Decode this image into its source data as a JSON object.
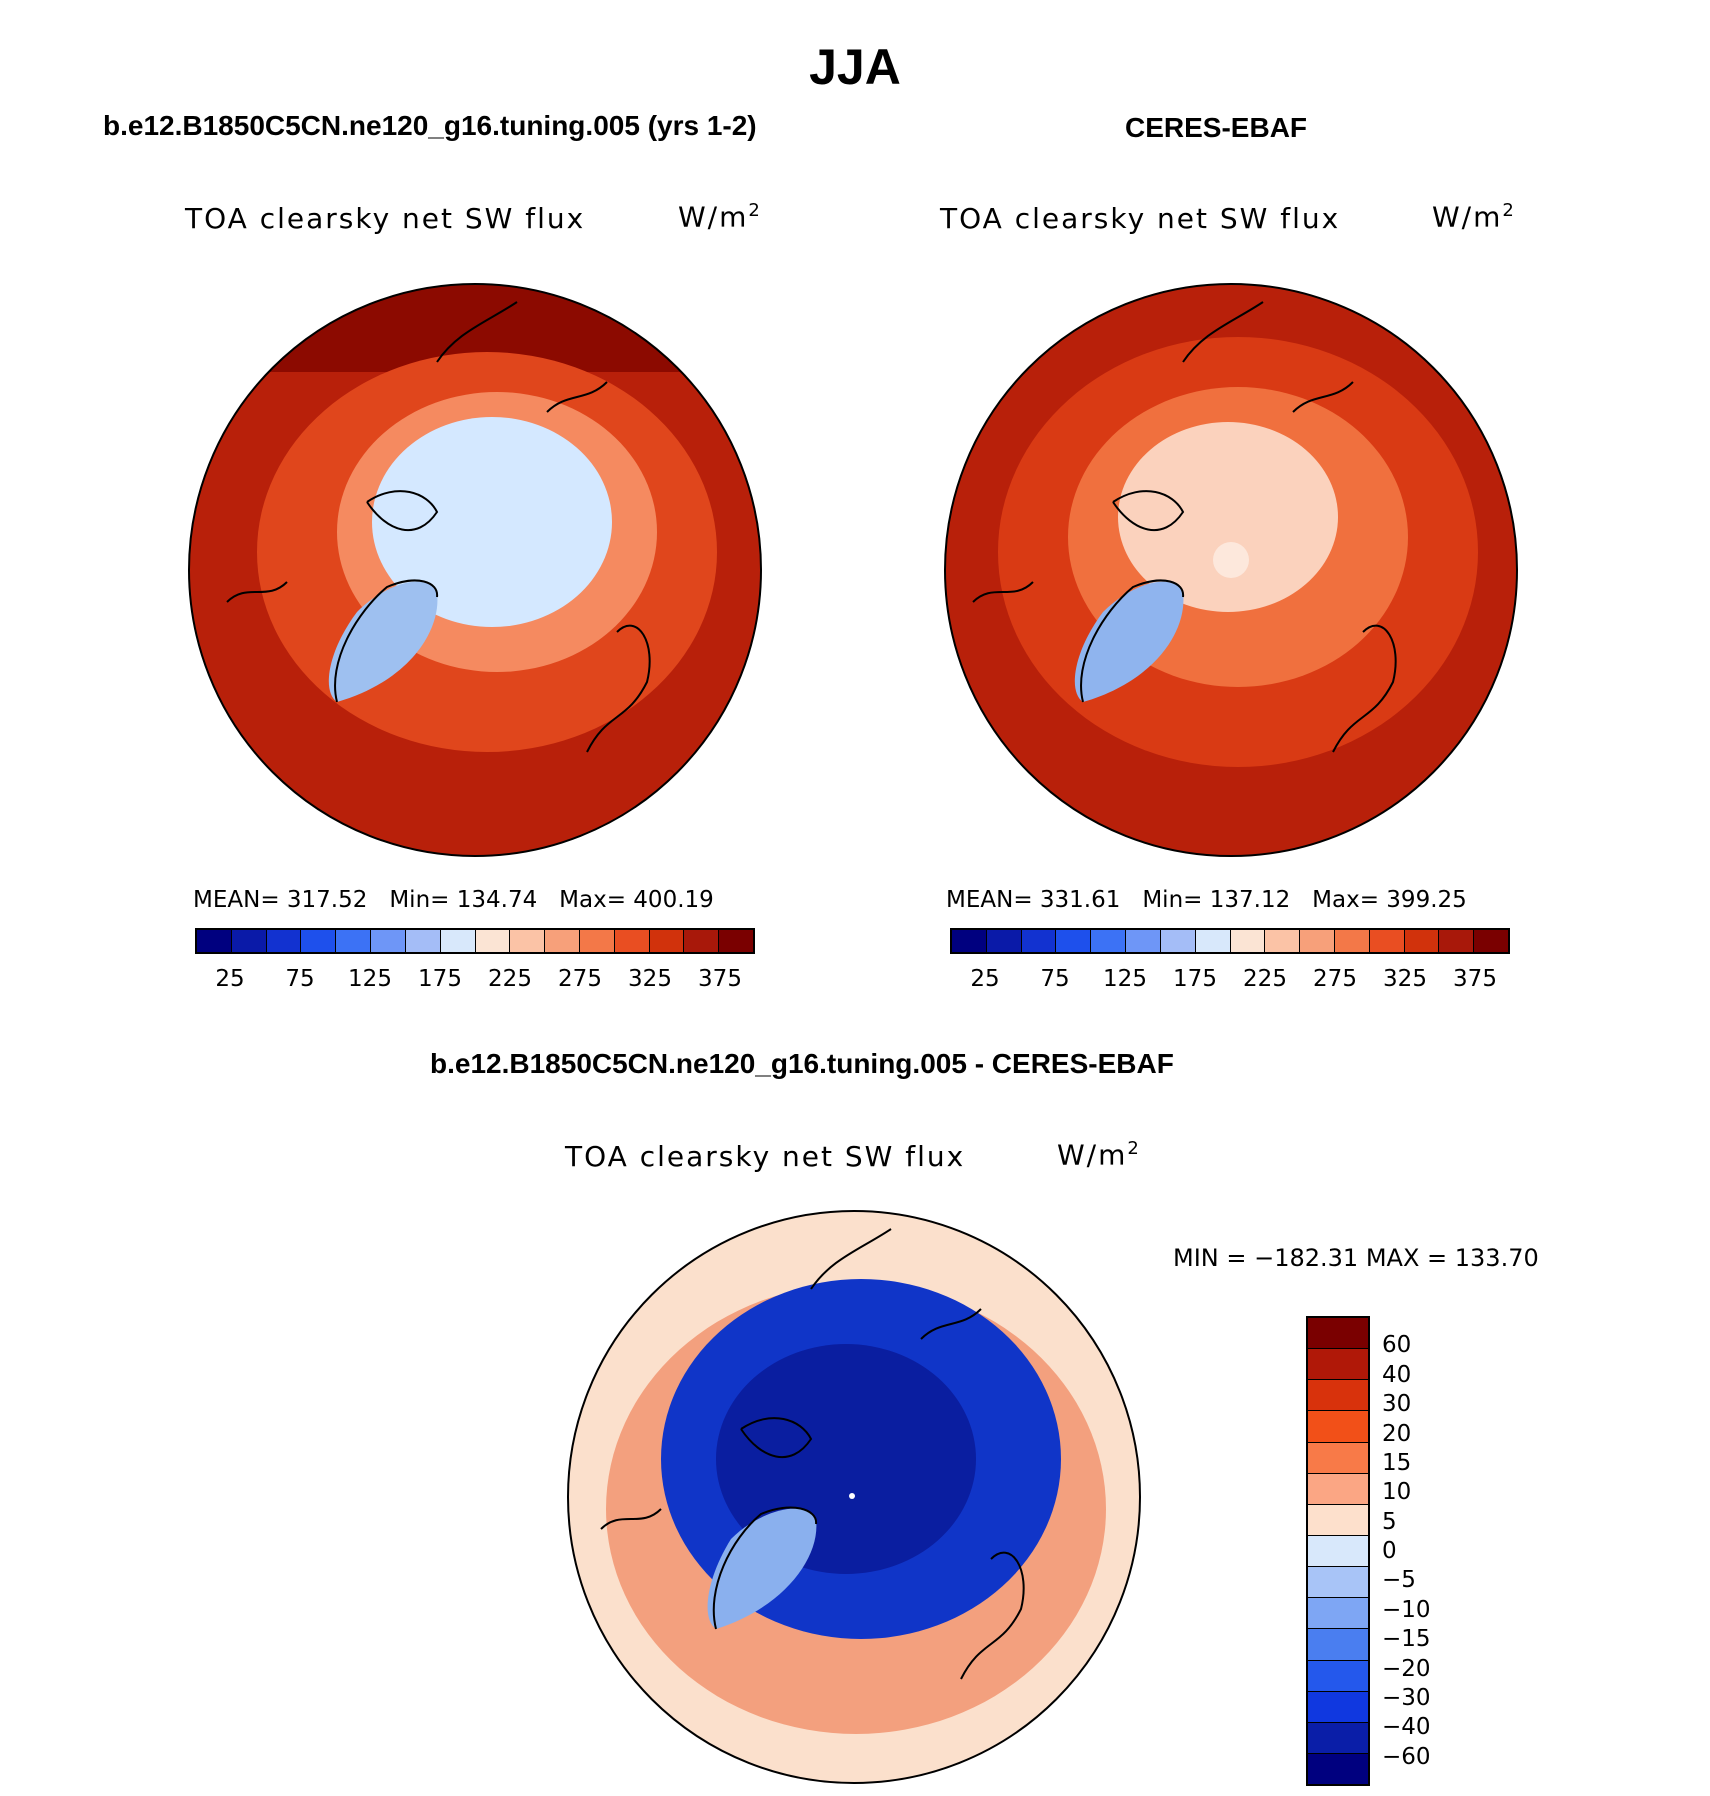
{
  "season": "JJA",
  "panels": [
    {
      "case_title": "b.e12.B1850C5CN.ne120_g16.tuning.005 (yrs 1-2)",
      "variable": "TOA clearsky net SW flux",
      "units": "W/m",
      "units_exp": "2",
      "stats": {
        "mean_label": "MEAN=",
        "mean": "317.52",
        "min_label": "Min=",
        "min": "134.74",
        "max_label": "Max=",
        "max": "400.19"
      },
      "map_colors": {
        "outer": "#b8200a",
        "mid": "#e0461c",
        "inner": "#f58a60",
        "polar": "#d4e8ff",
        "greenland": "#9ec0f0",
        "pole": "#cfe2fb"
      }
    },
    {
      "case_title": "CERES-EBAF",
      "variable": "TOA clearsky net SW flux",
      "units": "W/m",
      "units_exp": "2",
      "stats": {
        "mean_label": "MEAN=",
        "mean": "331.61",
        "min_label": "Min=",
        "min": "137.12",
        "max_label": "Max=",
        "max": "399.25"
      },
      "map_colors": {
        "outer": "#b8200a",
        "mid": "#d93a14",
        "inner": "#f0703e",
        "polar": "#fbd2bd",
        "greenland": "#8fb4ee",
        "pole": "#fde8dc"
      }
    }
  ],
  "abs_colorbar": {
    "colors": [
      "#00007f",
      "#0a1aa8",
      "#1232d0",
      "#1e50ec",
      "#3c72f5",
      "#6e96f7",
      "#a4bdf7",
      "#d8e8fb",
      "#fbe4d4",
      "#fbc3a6",
      "#f7a07a",
      "#f37848",
      "#e94e22",
      "#d1320c",
      "#a8180a",
      "#7a0000"
    ],
    "labels": [
      "25",
      "75",
      "125",
      "175",
      "225",
      "275",
      "325",
      "375"
    ]
  },
  "diff_panel": {
    "title": "b.e12.B1850C5CN.ne120_g16.tuning.005 - CERES-EBAF",
    "variable": "TOA clearsky net SW flux",
    "units": "W/m",
    "units_exp": "2",
    "minmax": "MIN = −182.31 MAX = 133.70",
    "map_colors": {
      "outer": "#fbe0cc",
      "ring": "#f3a07e",
      "blue": "#1035c8",
      "deep": "#0a1ea0",
      "greenland": "#8ab0ee",
      "pole": "#ffffff"
    }
  },
  "diff_colorbar": {
    "colors": [
      "#7a0000",
      "#b01808",
      "#d8320c",
      "#f25018",
      "#f87a48",
      "#fba684",
      "#fde0cc",
      "#d8e8fb",
      "#a8c4f7",
      "#7ea6f4",
      "#4a7ef0",
      "#2458ec",
      "#1038e0",
      "#0a1ea8",
      "#00007f"
    ],
    "labels": [
      "60",
      "40",
      "30",
      "20",
      "15",
      "10",
      "5",
      "0",
      "−5",
      "−10",
      "−15",
      "−20",
      "−30",
      "−40",
      "−60"
    ]
  }
}
